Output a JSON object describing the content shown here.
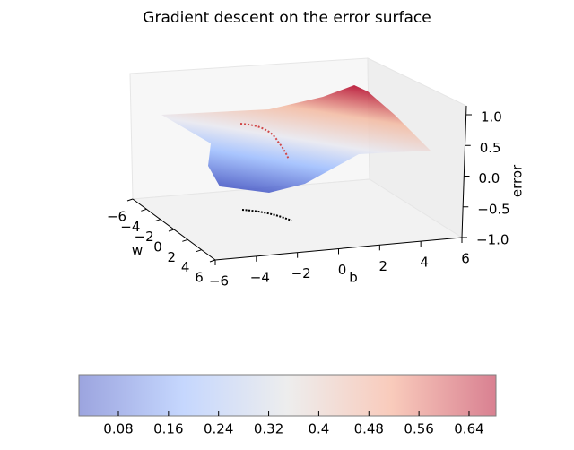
{
  "chart_data": {
    "type": "surface3d",
    "title": "Gradient descent on the error surface",
    "xlabel": "w",
    "ylabel": "b",
    "zlabel": "error",
    "xlim": [
      -6,
      6
    ],
    "xticks": [
      {
        "value": -6,
        "label": "−6"
      },
      {
        "value": -4,
        "label": "−4"
      },
      {
        "value": -2,
        "label": "−2"
      },
      0,
      2,
      4,
      6
    ],
    "ylim": [
      -6,
      6
    ],
    "yticks": [
      {
        "value": -6,
        "label": "−6"
      },
      {
        "value": -4,
        "label": "−4"
      },
      {
        "value": -2,
        "label": "−2"
      },
      0,
      2,
      4,
      6
    ],
    "zlim": [
      -1,
      1
    ],
    "zticks": [
      {
        "value": -1,
        "label": "−1.0"
      },
      {
        "value": -0.5,
        "label": "−0.5"
      },
      {
        "value": 0,
        "label": "0.0"
      },
      {
        "value": 0.5,
        "label": "0.5"
      },
      {
        "value": 1,
        "label": "1.0"
      }
    ],
    "colormap": "coolwarm",
    "colorbar": {
      "lim": [
        0.017,
        0.683
      ],
      "ticks": [
        0.08,
        0.16,
        0.24,
        0.32,
        0.4,
        0.48,
        0.56,
        0.64
      ]
    }
  }
}
